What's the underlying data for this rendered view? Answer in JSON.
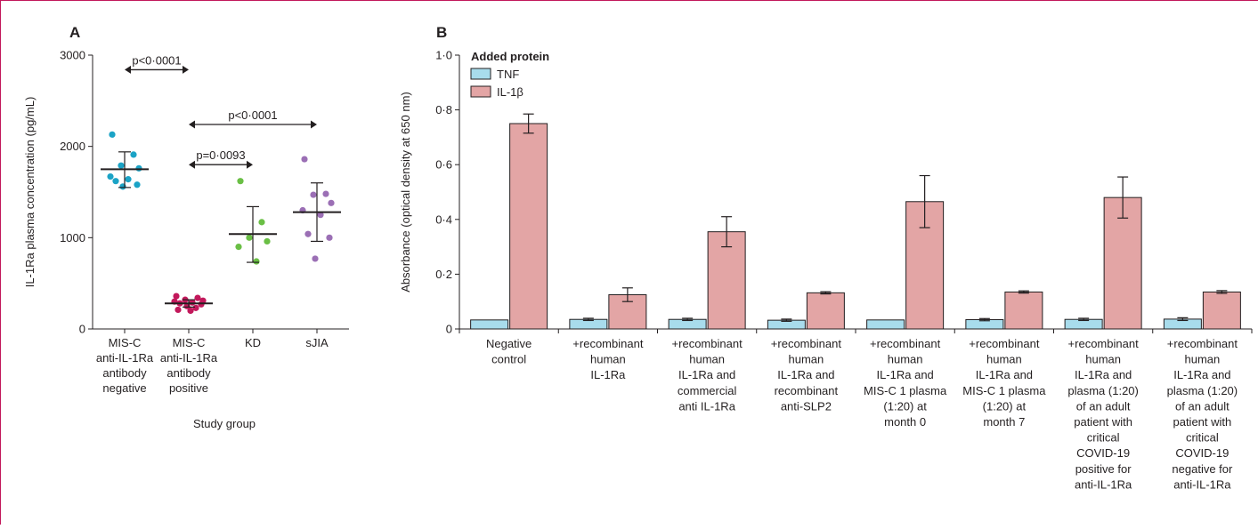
{
  "colors": {
    "frame": "#c2185b",
    "mis_c_negative": "#1ba3c6",
    "mis_c_positive": "#c2185b",
    "kd": "#6abf45",
    "sjia": "#9b6fb5",
    "tnf": "#a8dcec",
    "il1b": "#e3a5a5",
    "axis": "#231f20"
  },
  "chart_data": [
    {
      "panel": "A",
      "type": "scatter",
      "ylabel": "IL-1Ra plasma concentration (pg/mL)",
      "xlabel": "Study group",
      "ylim": [
        0,
        3000
      ],
      "yticks": [
        "0",
        "1000",
        "2000",
        "3000"
      ],
      "categories": [
        [
          "MIS-C",
          "anti-IL-1Ra",
          "antibody",
          "negative"
        ],
        [
          "MIS-C",
          "anti-IL-1Ra",
          "antibody",
          "positive"
        ],
        [
          "KD"
        ],
        [
          "sJIA"
        ]
      ],
      "groups": [
        {
          "color": "#1ba3c6",
          "mean": 1750,
          "sd": [
            1550,
            1940
          ],
          "points": [
            2130,
            1910,
            1790,
            1760,
            1670,
            1640,
            1620,
            1580,
            1560
          ]
        },
        {
          "color": "#c2185b",
          "mean": 280,
          "sd": [
            240,
            320
          ],
          "points": [
            360,
            340,
            320,
            310,
            300,
            290,
            280,
            270,
            250,
            230,
            210,
            200
          ]
        },
        {
          "color": "#6abf45",
          "mean": 1040,
          "sd": [
            730,
            1340
          ],
          "points": [
            1620,
            1170,
            1000,
            960,
            900,
            740
          ]
        },
        {
          "color": "#9b6fb5",
          "mean": 1280,
          "sd": [
            960,
            1600
          ],
          "points": [
            1860,
            1480,
            1470,
            1380,
            1300,
            1250,
            1040,
            1000,
            770
          ]
        }
      ],
      "comparisons": [
        {
          "label": "p<0·0001",
          "from": 0,
          "to": 1,
          "level": 2840
        },
        {
          "label": "p<0·0001",
          "from": 1,
          "to": 3,
          "level": 2240
        },
        {
          "label": "p=0·0093",
          "from": 1,
          "to": 2,
          "level": 1800
        }
      ]
    },
    {
      "panel": "B",
      "type": "bar",
      "ylabel": "Absorbance (optical density at 650 nm)",
      "ylim": [
        0,
        1.0
      ],
      "yticks": [
        "0",
        "0·2",
        "0·4",
        "0·6",
        "0·8",
        "1·0"
      ],
      "legend_title": "Added protein",
      "legend_position": "top-left",
      "categories": [
        [
          "Negative",
          "control"
        ],
        [
          "+recombinant",
          "human",
          "IL-1Ra"
        ],
        [
          "+recombinant",
          "human",
          "IL-1Ra and",
          "commercial",
          "anti IL-1Ra"
        ],
        [
          "+recombinant",
          "human",
          "IL-1Ra and",
          "recombinant",
          "anti-SLP2"
        ],
        [
          "+recombinant",
          "human",
          "IL-1Ra and",
          "MIS-C 1 plasma",
          "(1:20) at",
          "month 0"
        ],
        [
          "+recombinant",
          "human",
          "IL-1Ra and",
          "MIS-C 1 plasma",
          "(1:20) at",
          "month 7"
        ],
        [
          "+recombinant",
          "human",
          "IL-1Ra and",
          "plasma (1:20)",
          "of an adult",
          "patient with",
          "critical",
          "COVID-19",
          "positive for",
          "anti-IL-1Ra"
        ],
        [
          "+recombinant",
          "human",
          "IL-1Ra and",
          "plasma (1:20)",
          "of an adult",
          "patient with",
          "critical",
          "COVID-19",
          "negative for",
          "anti-IL-1Ra"
        ]
      ],
      "series": [
        {
          "name": "TNF",
          "color": "#a8dcec",
          "values": [
            0.033,
            0.035,
            0.035,
            0.032,
            0.033,
            0.034,
            0.035,
            0.036
          ],
          "err": [
            0,
            0.004,
            0.004,
            0.004,
            0,
            0.004,
            0.004,
            0.005
          ]
        },
        {
          "name": "IL-1β",
          "color": "#e3a5a5",
          "values": [
            0.75,
            0.125,
            0.355,
            0.132,
            0.465,
            0.135,
            0.48,
            0.135
          ],
          "err": [
            0.035,
            0.025,
            0.055,
            0.004,
            0.095,
            0.004,
            0.075,
            0.005
          ]
        }
      ]
    }
  ]
}
